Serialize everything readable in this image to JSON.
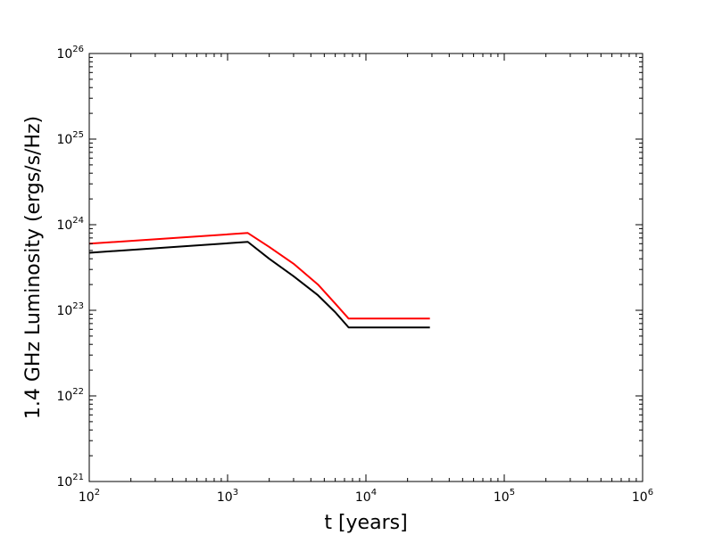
{
  "chart_data": {
    "type": "line",
    "title": "",
    "xlabel": "t [years]",
    "ylabel": "1.4 GHz Luminosity (ergs/s/Hz)",
    "xscale": "log",
    "yscale": "log",
    "xlim": [
      100,
      1000000
    ],
    "ylim": [
      1e+21,
      1e+26
    ],
    "grid": false,
    "legend": "none",
    "x_ticks": [
      {
        "base": "10",
        "exp": "2",
        "value": 100
      },
      {
        "base": "10",
        "exp": "3",
        "value": 1000
      },
      {
        "base": "10",
        "exp": "4",
        "value": 10000
      },
      {
        "base": "10",
        "exp": "5",
        "value": 100000
      },
      {
        "base": "10",
        "exp": "6",
        "value": 1000000
      }
    ],
    "y_ticks": [
      {
        "base": "10",
        "exp": "21",
        "value": 1e+21
      },
      {
        "base": "10",
        "exp": "22",
        "value": 1e+22
      },
      {
        "base": "10",
        "exp": "23",
        "value": 1e+23
      },
      {
        "base": "10",
        "exp": "24",
        "value": 1e+24
      },
      {
        "base": "10",
        "exp": "25",
        "value": 1e+25
      },
      {
        "base": "10",
        "exp": "26",
        "value": 1e+26
      }
    ],
    "series": [
      {
        "color": "#ff0000",
        "points": [
          [
            100,
            6e+23
          ],
          [
            1400,
            8e+23
          ],
          [
            2000,
            5.5e+23
          ],
          [
            3000,
            3.5e+23
          ],
          [
            4500,
            2e+23
          ],
          [
            6000,
            1.2e+23
          ],
          [
            7500,
            8e+22
          ],
          [
            29000,
            8e+22
          ]
        ]
      },
      {
        "color": "#000000",
        "points": [
          [
            100,
            4.7e+23
          ],
          [
            1400,
            6.3e+23
          ],
          [
            2000,
            4e+23
          ],
          [
            3000,
            2.5e+23
          ],
          [
            4500,
            1.5e+23
          ],
          [
            6000,
            9.5e+22
          ],
          [
            7500,
            6.3e+22
          ],
          [
            29000,
            6.3e+22
          ]
        ]
      }
    ]
  }
}
